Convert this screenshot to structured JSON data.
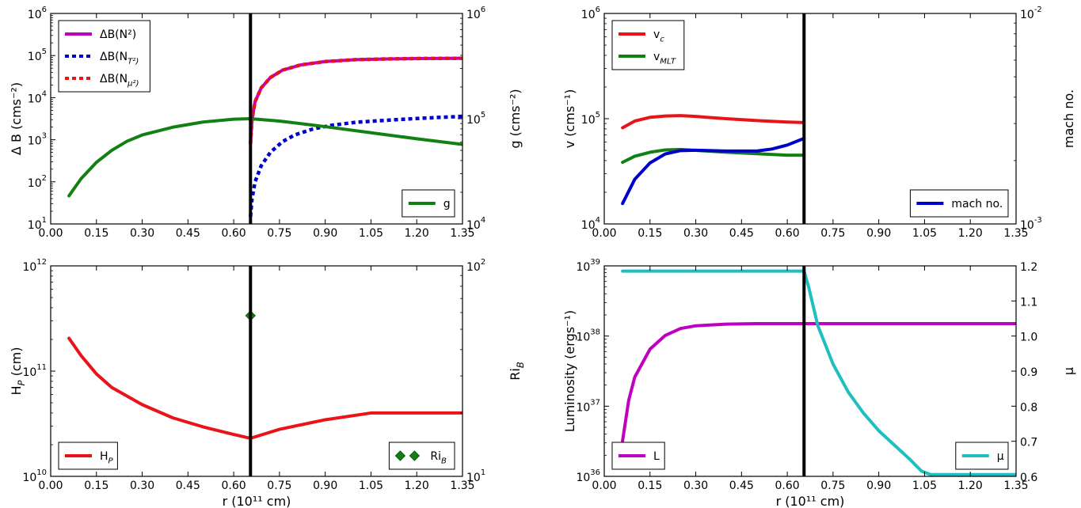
{
  "figure": {
    "background": "#ffffff"
  },
  "colors": {
    "magenta": "#bf00bf",
    "blue": "#0000cc",
    "red": "#e8141a",
    "green": "#128012",
    "cyan": "#1fbfbf",
    "boundary": "#000000"
  },
  "chart_data": [
    {
      "id": "delta-b",
      "type": "line",
      "xlim": [
        0.0,
        1.35
      ],
      "xticks": [
        "0.00",
        "0.15",
        "0.30",
        "0.45",
        "0.60",
        "0.75",
        "0.90",
        "1.05",
        "1.20",
        "1.35"
      ],
      "xlabel": "",
      "ylabel": "Δ B (cms⁻²)",
      "yscale": "log",
      "ylim": [
        10,
        1000000
      ],
      "yticks": [
        {
          "base": "10",
          "exp": "1"
        },
        {
          "base": "10",
          "exp": "2"
        },
        {
          "base": "10",
          "exp": "3"
        },
        {
          "base": "10",
          "exp": "4"
        },
        {
          "base": "10",
          "exp": "5"
        },
        {
          "base": "10",
          "exp": "6"
        }
      ],
      "y2label": "g (cms⁻²)",
      "y2scale": "log",
      "y2lim": [
        10000,
        1000000
      ],
      "y2ticks": [
        {
          "base": "10",
          "exp": "4"
        },
        {
          "base": "10",
          "exp": "5"
        },
        {
          "base": "10",
          "exp": "6"
        }
      ],
      "boundary_x": 0.655,
      "legend_left": {
        "position": "upper-left",
        "entries": [
          "ΔB(N²)",
          "ΔB(N_T²)",
          "ΔB(N_μ²)"
        ]
      },
      "legend_right": {
        "position": "lower-right",
        "entries": [
          "g"
        ]
      },
      "series": [
        {
          "name": "ΔB(N²)",
          "axis": "left",
          "color": "magenta",
          "style": "solid",
          "x": [
            0.655,
            0.66,
            0.67,
            0.69,
            0.72,
            0.76,
            0.82,
            0.9,
            1.0,
            1.1,
            1.2,
            1.35
          ],
          "y": [
            800,
            3000,
            8000,
            17000,
            30000,
            45000,
            60000,
            72000,
            80000,
            83000,
            85000,
            86000
          ]
        },
        {
          "name": "ΔB(N_T²)",
          "axis": "left",
          "color": "blue",
          "style": "dotted",
          "x": [
            0.655,
            0.66,
            0.67,
            0.69,
            0.72,
            0.76,
            0.8,
            0.86,
            0.92,
            1.0,
            1.1,
            1.2,
            1.35
          ],
          "y": [
            15,
            40,
            100,
            240,
            500,
            900,
            1300,
            1800,
            2200,
            2600,
            2900,
            3200,
            3600
          ]
        },
        {
          "name": "ΔB(N_μ²)",
          "axis": "left",
          "color": "red",
          "style": "dotted",
          "x": [
            0.655,
            0.66,
            0.67,
            0.69,
            0.72,
            0.76,
            0.82,
            0.9,
            1.0,
            1.1,
            1.2,
            1.35
          ],
          "y": [
            800,
            3000,
            8000,
            17000,
            30000,
            45000,
            60000,
            72000,
            80000,
            83000,
            85000,
            86000
          ]
        },
        {
          "name": "g",
          "axis": "right",
          "color": "green",
          "style": "solid",
          "x": [
            0.06,
            0.1,
            0.15,
            0.2,
            0.25,
            0.3,
            0.4,
            0.5,
            0.6,
            0.655,
            0.75,
            0.9,
            1.05,
            1.2,
            1.35
          ],
          "y": [
            18500,
            27000,
            38500,
            50000,
            61000,
            70000,
            83000,
            93000,
            99000,
            100000,
            95000,
            84000,
            73500,
            64500,
            57000
          ]
        }
      ]
    },
    {
      "id": "velocity",
      "type": "line",
      "xlim": [
        0.0,
        1.35
      ],
      "xticks": [
        "0.00",
        "0.15",
        "0.30",
        "0.45",
        "0.60",
        "0.75",
        "0.90",
        "1.05",
        "1.20",
        "1.35"
      ],
      "xlabel": "",
      "ylabel": "v (cms⁻¹)",
      "yscale": "log",
      "ylim": [
        10000,
        1000000
      ],
      "yticks": [
        {
          "base": "10",
          "exp": "4"
        },
        {
          "base": "10",
          "exp": "5"
        },
        {
          "base": "10",
          "exp": "6"
        }
      ],
      "y2label": "mach no.",
      "y2scale": "log",
      "y2lim": [
        0.001,
        0.01
      ],
      "y2ticks": [
        {
          "base": "10",
          "exp": "-3"
        },
        {
          "base": "10",
          "exp": "-2"
        }
      ],
      "boundary_x": 0.655,
      "legend_left": {
        "position": "upper-left",
        "entries": [
          "v_c",
          "v_MLT"
        ]
      },
      "legend_right": {
        "position": "lower-right",
        "entries": [
          "mach no."
        ]
      },
      "series": [
        {
          "name": "v_c",
          "axis": "left",
          "color": "red",
          "style": "solid",
          "x": [
            0.06,
            0.1,
            0.15,
            0.2,
            0.25,
            0.3,
            0.4,
            0.5,
            0.6,
            0.655
          ],
          "y": [
            82000,
            95000,
            103000,
            106000,
            107000,
            105000,
            100000,
            96000,
            93000,
            92000
          ]
        },
        {
          "name": "v_MLT",
          "axis": "left",
          "color": "green",
          "style": "solid",
          "x": [
            0.06,
            0.1,
            0.15,
            0.2,
            0.25,
            0.3,
            0.4,
            0.5,
            0.6,
            0.655
          ],
          "y": [
            38500,
            44000,
            48000,
            50500,
            51000,
            50000,
            48000,
            46500,
            45000,
            45000
          ]
        },
        {
          "name": "mach no.",
          "axis": "right",
          "color": "blue",
          "style": "solid",
          "x": [
            0.06,
            0.1,
            0.15,
            0.2,
            0.25,
            0.3,
            0.4,
            0.5,
            0.55,
            0.6,
            0.655
          ],
          "y": [
            0.00125,
            0.00163,
            0.00195,
            0.00215,
            0.00223,
            0.00224,
            0.00222,
            0.00222,
            0.00227,
            0.00237,
            0.00255
          ]
        }
      ]
    },
    {
      "id": "scale-height",
      "type": "line",
      "xlim": [
        0.0,
        1.35
      ],
      "xticks": [
        "0.00",
        "0.15",
        "0.30",
        "0.45",
        "0.60",
        "0.75",
        "0.90",
        "1.05",
        "1.20",
        "1.35"
      ],
      "xlabel": "r (10¹¹ cm)",
      "ylabel": "H_P (cm)",
      "yscale": "log",
      "ylim": [
        10000000000,
        1000000000000
      ],
      "yticks": [
        {
          "base": "10",
          "exp": "10"
        },
        {
          "base": "10",
          "exp": "11"
        },
        {
          "base": "10",
          "exp": "12"
        }
      ],
      "y2label": "Ri_B",
      "y2scale": "log",
      "y2lim": [
        10,
        100
      ],
      "y2ticks": [
        {
          "base": "10",
          "exp": "1"
        },
        {
          "base": "10",
          "exp": "2"
        }
      ],
      "boundary_x": 0.655,
      "legend_left": {
        "position": "lower-left",
        "entries": [
          "H_P"
        ]
      },
      "legend_right": {
        "position": "lower-right",
        "entries": [
          "Ri_B"
        ]
      },
      "series": [
        {
          "name": "H_P",
          "axis": "left",
          "color": "red",
          "style": "solid",
          "x": [
            0.06,
            0.1,
            0.15,
            0.2,
            0.3,
            0.4,
            0.5,
            0.6,
            0.655,
            0.75,
            0.9,
            1.05,
            1.1,
            1.2,
            1.35
          ],
          "y": [
            205000000000,
            140000000000,
            94000000000,
            70000000000,
            48000000000,
            36000000000,
            29500000000,
            25000000000,
            23000000000,
            28000000000,
            34500000000,
            40000000000,
            40000000000,
            40000000000,
            40000000000
          ]
        },
        {
          "name": "Ri_B",
          "axis": "right",
          "color": "green",
          "style": "diamond",
          "x": [
            0.655
          ],
          "y": [
            58
          ]
        }
      ]
    },
    {
      "id": "luminosity",
      "type": "line",
      "xlim": [
        0.0,
        1.35
      ],
      "xticks": [
        "0.00",
        "0.15",
        "0.30",
        "0.45",
        "0.60",
        "0.75",
        "0.90",
        "1.05",
        "1.20",
        "1.35"
      ],
      "xlabel": "r (10¹¹ cm)",
      "ylabel": "Luminosity (ergs⁻¹)",
      "yscale": "log",
      "ylim": [
        1e+36,
        1e+39
      ],
      "yticks": [
        {
          "base": "10",
          "exp": "36"
        },
        {
          "base": "10",
          "exp": "37"
        },
        {
          "base": "10",
          "exp": "38"
        },
        {
          "base": "10",
          "exp": "39"
        }
      ],
      "y2label": "μ",
      "y2scale": "linear",
      "y2lim": [
        0.6,
        1.2
      ],
      "y2ticks": [
        {
          "label": "0.6"
        },
        {
          "label": "0.7"
        },
        {
          "label": "0.8"
        },
        {
          "label": "0.9"
        },
        {
          "label": "1.0"
        },
        {
          "label": "1.1"
        },
        {
          "label": "1.2"
        }
      ],
      "boundary_x": 0.655,
      "legend_left": {
        "position": "lower-left",
        "entries": [
          "L"
        ]
      },
      "legend_right": {
        "position": "lower-right",
        "entries": [
          "μ"
        ]
      },
      "series": [
        {
          "name": "L",
          "axis": "left",
          "color": "magenta",
          "style": "solid",
          "x": [
            0.06,
            0.08,
            0.1,
            0.15,
            0.2,
            0.25,
            0.3,
            0.4,
            0.5,
            0.6,
            0.7,
            1.0,
            1.35
          ],
          "y": [
            3.2e+36,
            1.2e+37,
            2.6e+37,
            6.5e+37,
            1.02e+38,
            1.28e+38,
            1.4e+38,
            1.48e+38,
            1.5e+38,
            1.5e+38,
            1.5e+38,
            1.5e+38,
            1.5e+38
          ]
        },
        {
          "name": "μ",
          "axis": "right",
          "color": "cyan",
          "style": "solid",
          "x": [
            0.06,
            0.3,
            0.6,
            0.655,
            0.67,
            0.7,
            0.75,
            0.8,
            0.85,
            0.9,
            0.95,
            1.0,
            1.04,
            1.07,
            1.2,
            1.35
          ],
          "y": [
            1.185,
            1.185,
            1.185,
            1.185,
            1.14,
            1.03,
            0.92,
            0.84,
            0.78,
            0.73,
            0.69,
            0.65,
            0.615,
            0.605,
            0.605,
            0.605
          ]
        }
      ]
    }
  ]
}
